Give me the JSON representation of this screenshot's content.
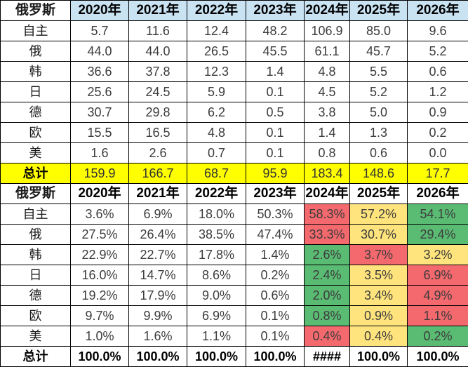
{
  "colors": {
    "header_blue": "#C9E3F3",
    "total_yellow": "#FFFF00",
    "cond_red": "#F4696E",
    "cond_yellow": "#FFE47D",
    "cond_green": "#5ABB73",
    "border": "#000000",
    "body_text": "#3C3C3C"
  },
  "chart_data": [
    {
      "type": "table",
      "name": "russia-volume-table",
      "corner_label": "俄罗斯",
      "columns": [
        "2020年",
        "2021年",
        "2022年",
        "2023年",
        "2024年",
        "2025年",
        "2026年"
      ],
      "header_fill": "header_blue",
      "total_fill": "total_yellow",
      "rows": [
        {
          "label": "自主",
          "type": "data",
          "values": [
            "5.7",
            "11.6",
            "12.4",
            "48.2",
            "106.9",
            "85.0",
            "9.6"
          ]
        },
        {
          "label": "俄",
          "type": "data",
          "values": [
            "44.0",
            "44.0",
            "26.5",
            "45.5",
            "61.1",
            "45.7",
            "5.2"
          ]
        },
        {
          "label": "韩",
          "type": "data",
          "values": [
            "36.6",
            "37.8",
            "12.3",
            "1.4",
            "4.8",
            "5.5",
            "0.6"
          ]
        },
        {
          "label": "日",
          "type": "data",
          "values": [
            "25.6",
            "24.5",
            "5.9",
            "0.1",
            "4.5",
            "5.2",
            "1.2"
          ]
        },
        {
          "label": "德",
          "type": "data",
          "values": [
            "30.7",
            "29.8",
            "6.2",
            "0.5",
            "3.8",
            "5.0",
            "0.9"
          ]
        },
        {
          "label": "欧",
          "type": "data",
          "values": [
            "15.5",
            "16.5",
            "4.8",
            "0.1",
            "1.4",
            "1.3",
            "0.2"
          ]
        },
        {
          "label": "美",
          "type": "data",
          "values": [
            "1.6",
            "2.6",
            "0.7",
            "0.1",
            "0.8",
            "0.6",
            "0.0"
          ]
        },
        {
          "label": "总计",
          "type": "total",
          "values": [
            "159.9",
            "166.7",
            "68.7",
            "95.9",
            "183.4",
            "148.6",
            "17.7"
          ]
        }
      ]
    },
    {
      "type": "table",
      "name": "russia-share-table",
      "corner_label": "俄罗斯",
      "columns": [
        "2020年",
        "2021年",
        "2022年",
        "2023年",
        "2024年",
        "2025年",
        "2026年"
      ],
      "header_fill": null,
      "total_fill": null,
      "rows": [
        {
          "label": "自主",
          "type": "data",
          "values": [
            "3.6%",
            "6.9%",
            "18.0%",
            "50.3%",
            "58.3%",
            "57.2%",
            "54.1%"
          ],
          "fills": [
            null,
            null,
            null,
            null,
            "cond_red",
            "cond_yellow",
            "cond_green"
          ]
        },
        {
          "label": "俄",
          "type": "data",
          "values": [
            "27.5%",
            "26.4%",
            "38.5%",
            "47.4%",
            "33.3%",
            "30.7%",
            "29.4%"
          ],
          "fills": [
            null,
            null,
            null,
            null,
            "cond_red",
            "cond_yellow",
            "cond_green"
          ]
        },
        {
          "label": "韩",
          "type": "data",
          "values": [
            "22.9%",
            "22.7%",
            "17.8%",
            "1.4%",
            "2.6%",
            "3.7%",
            "3.2%"
          ],
          "fills": [
            null,
            null,
            null,
            null,
            "cond_green",
            "cond_red",
            "cond_yellow"
          ]
        },
        {
          "label": "日",
          "type": "data",
          "values": [
            "16.0%",
            "14.7%",
            "8.6%",
            "0.2%",
            "2.4%",
            "3.5%",
            "6.9%"
          ],
          "fills": [
            null,
            null,
            null,
            null,
            "cond_green",
            "cond_yellow",
            "cond_red"
          ]
        },
        {
          "label": "德",
          "type": "data",
          "values": [
            "19.2%",
            "17.9%",
            "9.0%",
            "0.6%",
            "2.0%",
            "3.4%",
            "4.9%"
          ],
          "fills": [
            null,
            null,
            null,
            null,
            "cond_green",
            "cond_yellow",
            "cond_red"
          ]
        },
        {
          "label": "欧",
          "type": "data",
          "values": [
            "9.7%",
            "9.9%",
            "6.9%",
            "0.1%",
            "0.8%",
            "0.9%",
            "1.1%"
          ],
          "fills": [
            null,
            null,
            null,
            null,
            "cond_green",
            "cond_yellow",
            "cond_red"
          ]
        },
        {
          "label": "美",
          "type": "data",
          "values": [
            "1.0%",
            "1.6%",
            "1.1%",
            "0.1%",
            "0.4%",
            "0.4%",
            "0.2%"
          ],
          "fills": [
            null,
            null,
            null,
            null,
            "cond_red",
            "cond_yellow",
            "cond_green"
          ]
        },
        {
          "label": "总计",
          "type": "total",
          "values": [
            "100.0%",
            "100.0%",
            "100.0%",
            "100.0%",
            "####",
            "100.0%",
            "100.0%"
          ]
        }
      ]
    }
  ]
}
